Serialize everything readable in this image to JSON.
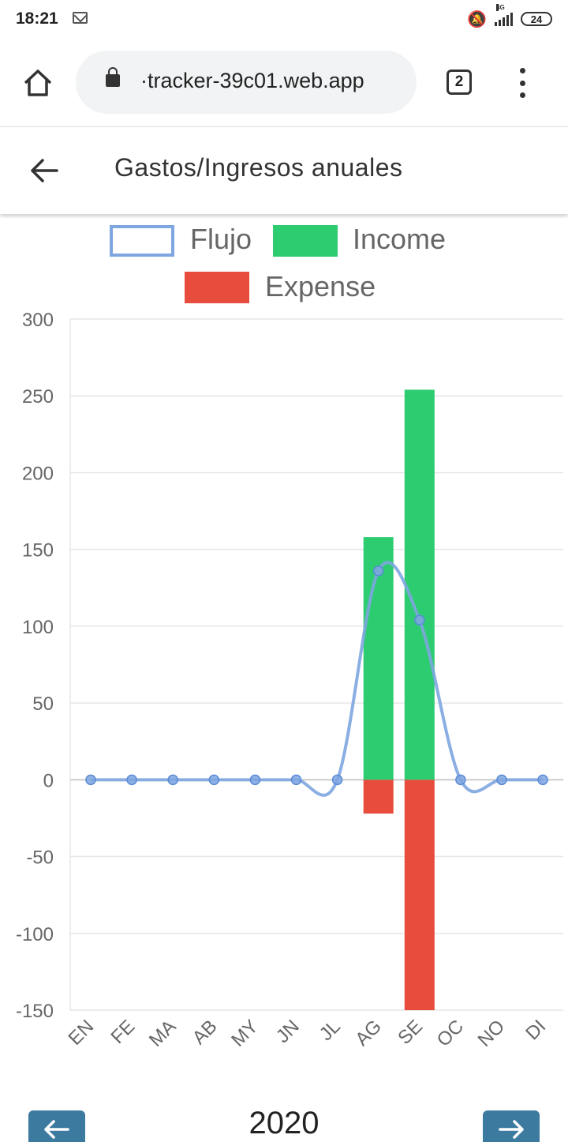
{
  "status_bar": {
    "time": "18:21",
    "icons": [
      "mail-icon",
      "bell-off-icon",
      "signal-icon",
      "battery-icon"
    ],
    "network": "4G",
    "battery": "24"
  },
  "browser": {
    "url": "·tracker-39c01.web.app",
    "tab_count": "2"
  },
  "app": {
    "title": "Gastos/Ingresos anuales"
  },
  "footer": {
    "year": "2020"
  },
  "chart_data": {
    "type": "bar",
    "categories": [
      "EN",
      "FE",
      "MA",
      "AB",
      "MY",
      "JN",
      "JL",
      "AG",
      "SE",
      "OC",
      "NO",
      "DI"
    ],
    "series": [
      {
        "name": "Flujo",
        "type": "line",
        "color": "#7ea6e0",
        "values": [
          0,
          0,
          0,
          0,
          0,
          0,
          0,
          136,
          104,
          0,
          0,
          0
        ]
      },
      {
        "name": "Income",
        "type": "bar",
        "color": "#2ecc71",
        "values": [
          0,
          0,
          0,
          0,
          0,
          0,
          0,
          158,
          254,
          0,
          0,
          0
        ]
      },
      {
        "name": "Expense",
        "type": "bar",
        "color": "#e74c3c",
        "values": [
          0,
          0,
          0,
          0,
          0,
          0,
          0,
          -22,
          -150,
          0,
          0,
          0
        ]
      }
    ],
    "ylim": [
      -150,
      300
    ],
    "yticks": [
      300,
      250,
      200,
      150,
      100,
      50,
      0,
      -50,
      -100,
      -150
    ],
    "legend": "top",
    "grid": true
  }
}
